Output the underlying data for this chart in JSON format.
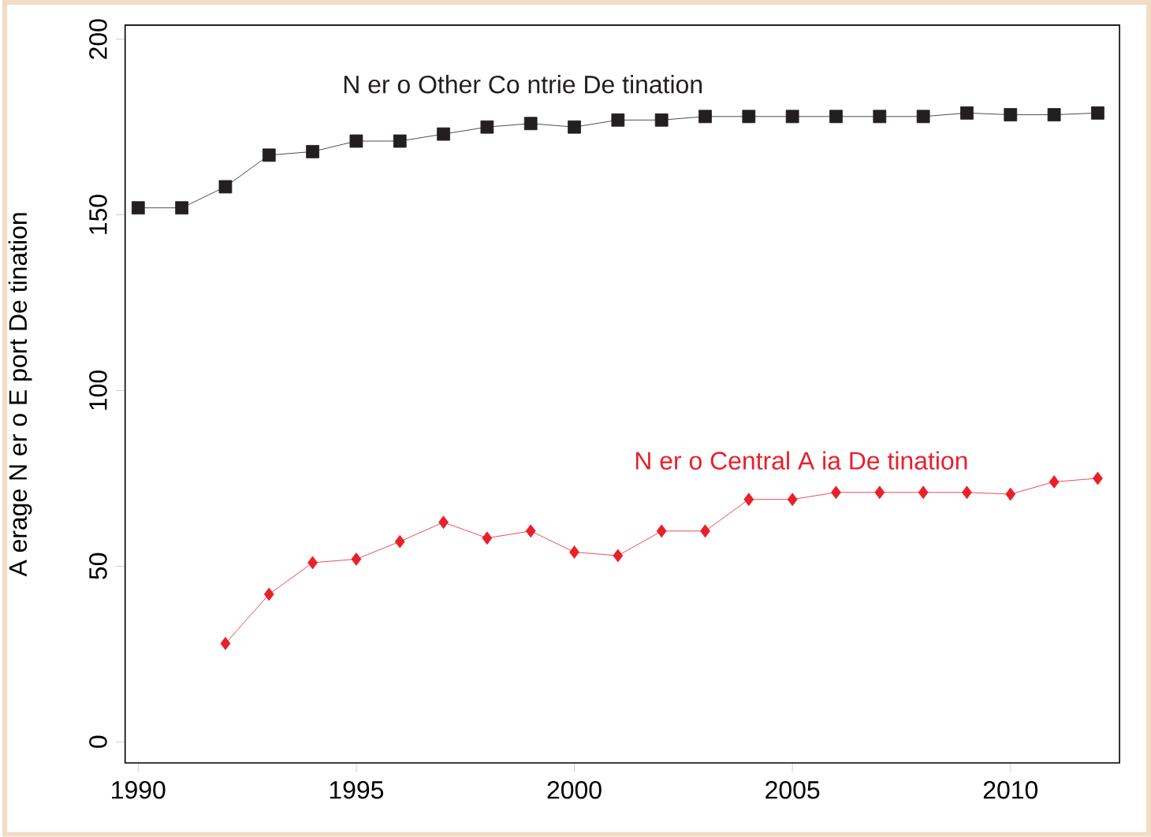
{
  "chart_data": {
    "type": "line",
    "ylabel": "A erage N er o E port De tination",
    "x": [
      1990,
      1991,
      1992,
      1993,
      1994,
      1995,
      1996,
      1997,
      1998,
      1999,
      2000,
      2001,
      2002,
      2003,
      2004,
      2005,
      2006,
      2007,
      2008,
      2009,
      2010,
      2011,
      2012
    ],
    "series": [
      {
        "name": "N er o Other Co ntrie De tination",
        "color": "#231f20",
        "marker": "square",
        "values": [
          152,
          152,
          158,
          167,
          168,
          171,
          171,
          173,
          175,
          176,
          175,
          177,
          177,
          178,
          178,
          178,
          178,
          178,
          178,
          179,
          178.5,
          178.5,
          179
        ]
      },
      {
        "name": "N er o Central A ia De tination",
        "color": "#e8202a",
        "marker": "diamond",
        "values": [
          null,
          null,
          28,
          42,
          51,
          52,
          57,
          62.5,
          58,
          60,
          54,
          53,
          60,
          60,
          69,
          69,
          71,
          71,
          71,
          71,
          70.5,
          74,
          75
        ]
      }
    ],
    "xlim": [
      1989.7,
      2012.5
    ],
    "ylim": [
      -6,
      204
    ],
    "xticks": [
      1990,
      1995,
      2000,
      2005,
      2010
    ],
    "yticks": [
      0,
      50,
      100,
      150,
      200
    ],
    "grid": false,
    "legend": false,
    "line_style": "solid"
  }
}
